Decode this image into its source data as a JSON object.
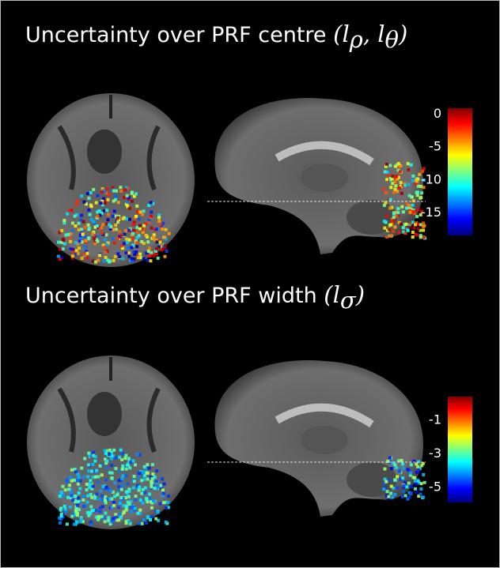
{
  "panels": [
    {
      "title": "Uncertainty over PRF centre",
      "formula": [
        "(",
        {
          "base": "l",
          "sub": "ρ"
        },
        ", ",
        {
          "base": "l",
          "sub": "θ"
        },
        ")"
      ],
      "colorbar": {
        "lim": [
          0.9,
          -18.4
        ],
        "ticks": [
          0,
          -5,
          -10,
          -15
        ]
      }
    },
    {
      "title": "Uncertainty over PRF width",
      "formula": [
        "(",
        {
          "base": "l",
          "sub": "σ"
        },
        ")"
      ],
      "colorbar": {
        "lim": [
          0.4,
          -5.9
        ],
        "ticks": [
          -1,
          -3,
          -5
        ]
      }
    }
  ]
}
